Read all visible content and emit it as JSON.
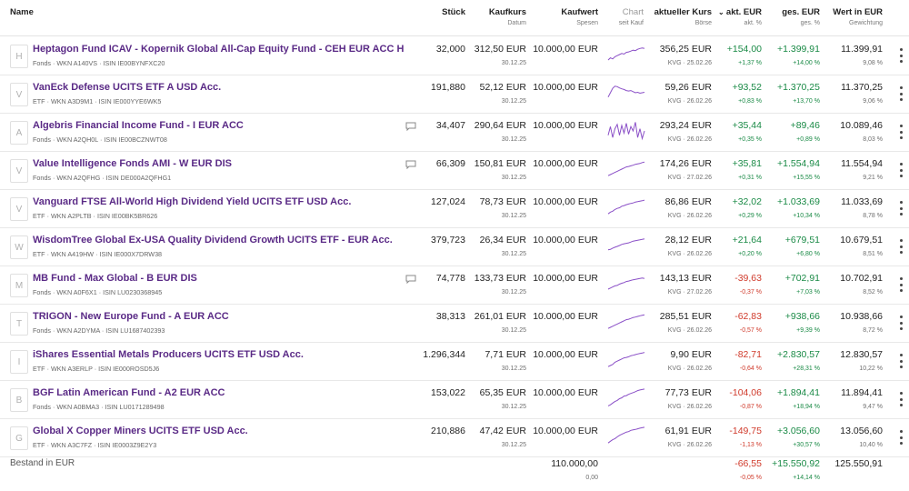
{
  "headers": {
    "name": "Name",
    "stueck": "Stück",
    "kaufkurs": "Kaufkurs",
    "kaufkurs_sub": "Datum",
    "kaufwert": "Kaufwert",
    "kaufwert_sub": "Spesen",
    "chart": "Chart",
    "chart_sub": "seit Kauf",
    "kurs": "aktueller Kurs",
    "kurs_sub": "Börse",
    "akt_eur": "akt. EUR",
    "akt_eur_sub": "akt. %",
    "ges_eur": "ges. EUR",
    "ges_eur_sub": "ges. %",
    "wert": "Wert in EUR",
    "wert_sub": "Gewichtung"
  },
  "rows": [
    {
      "letter": "H",
      "name": "Heptagon Fund ICAV - Kopernik Global All-Cap Equity Fund - CEH EUR ACC H",
      "meta": "Fonds · WKN A140VS · ISIN IE00BYNFXC20",
      "comment": false,
      "stueck": "32,000",
      "kaufkurs": "312,50 EUR",
      "datum": "30.12.25",
      "kaufwert": "10.000,00 EUR",
      "kurs": "356,25 EUR",
      "boerse": "KVG · 25.02.26",
      "akt_eur": "+154,00",
      "akt_pct": "+1,37 %",
      "akt_dir": "pos",
      "ges_eur": "+1.399,91",
      "ges_pct": "+14,00 %",
      "ges_dir": "pos",
      "wert": "11.399,91",
      "gewicht": "9,08 %",
      "spark": [
        0.25,
        0.35,
        0.3,
        0.4,
        0.45,
        0.5,
        0.55,
        0.52,
        0.6,
        0.62,
        0.66,
        0.7,
        0.68,
        0.74,
        0.78,
        0.8,
        0.78
      ]
    },
    {
      "letter": "V",
      "name": "VanEck Defense UCITS ETF A USD Acc.",
      "meta": "ETF · WKN A3D9M1 · ISIN IE000YYE6WK5",
      "comment": false,
      "stueck": "191,880",
      "kaufkurs": "52,12 EUR",
      "datum": "30.12.25",
      "kaufwert": "10.000,00 EUR",
      "kurs": "59,26 EUR",
      "boerse": "KVG · 26.02.26",
      "akt_eur": "+93,52",
      "akt_pct": "+0,83 %",
      "akt_dir": "pos",
      "ges_eur": "+1.370,25",
      "ges_pct": "+13,70 %",
      "ges_dir": "pos",
      "wert": "11.370,25",
      "gewicht": "9,06 %",
      "spark": [
        0.3,
        0.5,
        0.7,
        0.8,
        0.78,
        0.72,
        0.68,
        0.65,
        0.6,
        0.58,
        0.6,
        0.55,
        0.5,
        0.52,
        0.48,
        0.5,
        0.52
      ]
    },
    {
      "letter": "A",
      "name": "Algebris Financial Income Fund - I EUR ACC",
      "meta": "Fonds · WKN A2QH0L · ISIN IE00BCZNWT08",
      "comment": true,
      "stueck": "34,407",
      "kaufkurs": "290,64 EUR",
      "datum": "30.12.25",
      "kaufwert": "10.000,00 EUR",
      "kurs": "293,24 EUR",
      "boerse": "KVG · 26.02.26",
      "akt_eur": "+35,44",
      "akt_pct": "+0,35 %",
      "akt_dir": "pos",
      "ges_eur": "+89,46",
      "ges_pct": "+0,89 %",
      "ges_dir": "pos",
      "wert": "10.089,46",
      "gewicht": "8,03 %",
      "spark": [
        0.3,
        0.7,
        0.2,
        0.6,
        0.8,
        0.3,
        0.75,
        0.4,
        0.85,
        0.35,
        0.7,
        0.5,
        0.9,
        0.2,
        0.6,
        0.15,
        0.5
      ]
    },
    {
      "letter": "V",
      "name": "Value Intelligence Fonds AMI - W EUR DIS",
      "meta": "Fonds · WKN A2QFHG · ISIN DE000A2QFHG1",
      "comment": true,
      "stueck": "66,309",
      "kaufkurs": "150,81 EUR",
      "datum": "30.12.25",
      "kaufwert": "10.000,00 EUR",
      "kurs": "174,26 EUR",
      "boerse": "KVG · 27.02.26",
      "akt_eur": "+35,81",
      "akt_pct": "+0,31 %",
      "akt_dir": "pos",
      "ges_eur": "+1.554,94",
      "ges_pct": "+15,55 %",
      "ges_dir": "pos",
      "wert": "11.554,94",
      "gewicht": "9,21 %",
      "spark": [
        0.2,
        0.25,
        0.3,
        0.35,
        0.4,
        0.45,
        0.5,
        0.55,
        0.6,
        0.62,
        0.65,
        0.68,
        0.72,
        0.74,
        0.76,
        0.8,
        0.82
      ]
    },
    {
      "letter": "V",
      "name": "Vanguard FTSE All-World High Dividend Yield UCITS ETF USD Acc.",
      "meta": "ETF · WKN A2PLTB · ISIN IE00BK5BR626",
      "comment": false,
      "stueck": "127,024",
      "kaufkurs": "78,73 EUR",
      "datum": "30.12.25",
      "kaufwert": "10.000,00 EUR",
      "kurs": "86,86 EUR",
      "boerse": "KVG · 26.02.26",
      "akt_eur": "+32,02",
      "akt_pct": "+0,29 %",
      "akt_dir": "pos",
      "ges_eur": "+1.033,69",
      "ges_pct": "+10,34 %",
      "ges_dir": "pos",
      "wert": "11.033,69",
      "gewicht": "8,78 %",
      "spark": [
        0.2,
        0.28,
        0.32,
        0.4,
        0.45,
        0.48,
        0.55,
        0.58,
        0.62,
        0.65,
        0.68,
        0.7,
        0.74,
        0.76,
        0.78,
        0.8,
        0.83
      ]
    },
    {
      "letter": "W",
      "name": "WisdomTree Global Ex-USA Quality Dividend Growth UCITS ETF - EUR Acc.",
      "meta": "ETF · WKN A419HW · ISIN IE000X7DRW38",
      "comment": false,
      "stueck": "379,723",
      "kaufkurs": "26,34 EUR",
      "datum": "30.12.25",
      "kaufwert": "10.000,00 EUR",
      "kurs": "28,12 EUR",
      "boerse": "KVG · 26.02.26",
      "akt_eur": "+21,64",
      "akt_pct": "+0,20 %",
      "akt_dir": "pos",
      "ges_eur": "+679,51",
      "ges_pct": "+6,80 %",
      "ges_dir": "pos",
      "wert": "10.679,51",
      "gewicht": "8,51 %",
      "spark": [
        0.3,
        0.32,
        0.38,
        0.42,
        0.46,
        0.5,
        0.55,
        0.58,
        0.6,
        0.62,
        0.66,
        0.7,
        0.72,
        0.74,
        0.76,
        0.78,
        0.8
      ]
    },
    {
      "letter": "M",
      "name": "MB Fund - Max Global - B EUR DIS",
      "meta": "Fonds · WKN A0F6X1 · ISIN LU0230368945",
      "comment": true,
      "stueck": "74,778",
      "kaufkurs": "133,73 EUR",
      "datum": "30.12.25",
      "kaufwert": "10.000,00 EUR",
      "kurs": "143,13 EUR",
      "boerse": "KVG · 27.02.26",
      "akt_eur": "-39,63",
      "akt_pct": "-0,37 %",
      "akt_dir": "neg",
      "ges_eur": "+702,91",
      "ges_pct": "+7,03 %",
      "ges_dir": "pos",
      "wert": "10.702,91",
      "gewicht": "8,52 %",
      "spark": [
        0.25,
        0.3,
        0.35,
        0.4,
        0.42,
        0.48,
        0.52,
        0.55,
        0.6,
        0.62,
        0.65,
        0.68,
        0.7,
        0.72,
        0.74,
        0.76,
        0.74
      ]
    },
    {
      "letter": "T",
      "name": "TRIGON - New Europe Fund - A EUR ACC",
      "meta": "Fonds · WKN A2DYMA · ISIN LU1687402393",
      "comment": false,
      "stueck": "38,313",
      "kaufkurs": "261,01 EUR",
      "datum": "30.12.25",
      "kaufwert": "10.000,00 EUR",
      "kurs": "285,51 EUR",
      "boerse": "KVG · 26.02.26",
      "akt_eur": "-62,83",
      "akt_pct": "-0,57 %",
      "akt_dir": "neg",
      "ges_eur": "+938,66",
      "ges_pct": "+9,39 %",
      "ges_dir": "pos",
      "wert": "10.938,66",
      "gewicht": "8,72 %",
      "spark": [
        0.2,
        0.25,
        0.3,
        0.35,
        0.4,
        0.45,
        0.5,
        0.55,
        0.6,
        0.62,
        0.66,
        0.7,
        0.72,
        0.75,
        0.78,
        0.8,
        0.82
      ]
    },
    {
      "letter": "I",
      "name": "iShares Essential Metals Producers UCITS ETF USD Acc.",
      "meta": "ETF · WKN A3ERLP · ISIN IE000ROSD5J6",
      "comment": false,
      "stueck": "1.296,344",
      "kaufkurs": "7,71 EUR",
      "datum": "30.12.25",
      "kaufwert": "10.000,00 EUR",
      "kurs": "9,90 EUR",
      "boerse": "KVG · 26.02.26",
      "akt_eur": "-82,71",
      "akt_pct": "-0,64 %",
      "akt_dir": "neg",
      "ges_eur": "+2.830,57",
      "ges_pct": "+28,31 %",
      "ges_dir": "pos",
      "wert": "12.830,57",
      "gewicht": "10,22 %",
      "spark": [
        0.2,
        0.25,
        0.3,
        0.4,
        0.45,
        0.5,
        0.55,
        0.6,
        0.62,
        0.65,
        0.7,
        0.72,
        0.75,
        0.78,
        0.8,
        0.82,
        0.85
      ]
    },
    {
      "letter": "B",
      "name": "BGF Latin American Fund - A2 EUR ACC",
      "meta": "Fonds · WKN A0BMA3 · ISIN LU0171289498",
      "comment": false,
      "stueck": "153,022",
      "kaufkurs": "65,35 EUR",
      "datum": "30.12.25",
      "kaufwert": "10.000,00 EUR",
      "kurs": "77,73 EUR",
      "boerse": "KVG · 26.02.26",
      "akt_eur": "-104,06",
      "akt_pct": "-0,87 %",
      "akt_dir": "neg",
      "ges_eur": "+1.894,41",
      "ges_pct": "+18,94 %",
      "ges_dir": "pos",
      "wert": "11.894,41",
      "gewicht": "9,47 %",
      "spark": [
        0.15,
        0.2,
        0.28,
        0.35,
        0.4,
        0.48,
        0.52,
        0.6,
        0.62,
        0.68,
        0.72,
        0.76,
        0.8,
        0.85,
        0.88,
        0.9,
        0.92
      ]
    },
    {
      "letter": "G",
      "name": "Global X Copper Miners UCITS ETF USD Acc.",
      "meta": "ETF · WKN A3C7FZ · ISIN IE0003Z9E2Y3",
      "comment": false,
      "stueck": "210,886",
      "kaufkurs": "47,42 EUR",
      "datum": "30.12.25",
      "kaufwert": "10.000,00 EUR",
      "kurs": "61,91 EUR",
      "boerse": "KVG · 26.02.26",
      "akt_eur": "-149,75",
      "akt_pct": "-1,13 %",
      "akt_dir": "neg",
      "ges_eur": "+3.056,60",
      "ges_pct": "+30,57 %",
      "ges_dir": "pos",
      "wert": "13.056,60",
      "gewicht": "10,40 %",
      "spark": [
        0.2,
        0.28,
        0.35,
        0.4,
        0.48,
        0.55,
        0.6,
        0.65,
        0.7,
        0.72,
        0.78,
        0.8,
        0.82,
        0.85,
        0.88,
        0.9,
        0.92
      ]
    }
  ],
  "footer": {
    "title": "Bestand in EUR",
    "kaufwert": "110.000,00",
    "spesen": "0,00",
    "akt_eur": "-66,55",
    "akt_pct": "-0,05 %",
    "ges_eur": "+15.550,92",
    "ges_pct": "+14,14 %",
    "wert": "125.550,91"
  },
  "colors": {
    "name": "#5a2a86",
    "positive": "#1a8a46",
    "negative": "#d03a2b",
    "spark": "#8a4fc7"
  }
}
